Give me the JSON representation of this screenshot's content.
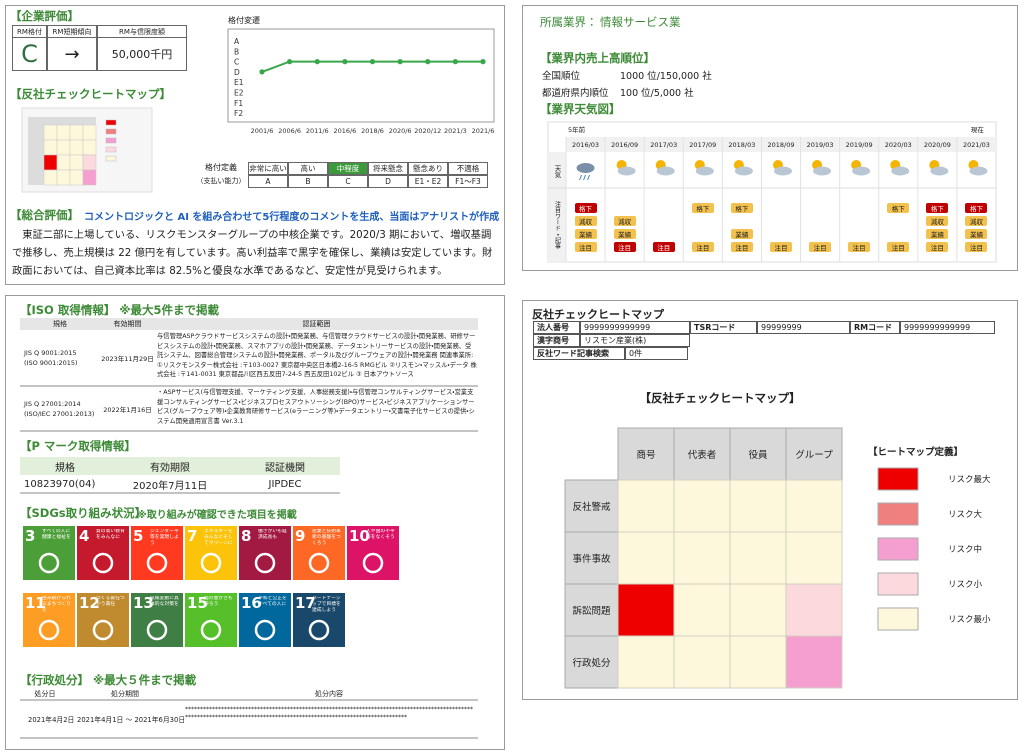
{
  "company_rating": {
    "title": "【企業評価】",
    "headers": [
      "RM格付",
      "RM短期傾向",
      "RM与信限度額"
    ],
    "values": [
      "C",
      "→",
      "50,000千円"
    ]
  },
  "chart_data": {
    "type": "line",
    "title": "格付変遷",
    "categories": [
      "2001/6",
      "2006/6",
      "2011/6",
      "2016/6",
      "2018/6",
      "2020/6",
      "2020/12",
      "2021/3",
      "2021/6"
    ],
    "y_categories": [
      "A",
      "B",
      "C",
      "D",
      "E1",
      "E2",
      "F1",
      "F2"
    ],
    "values": [
      "D",
      "C",
      "C",
      "C",
      "C",
      "C",
      "C",
      "C",
      "C"
    ],
    "color": "#3aa64a"
  },
  "antisocial_title": "【反社チェックヒートマップ】",
  "rating_definition": {
    "label": [
      "格付定義",
      "（支払い能力）"
    ],
    "levels": [
      "非常に高い",
      "高い",
      "中程度",
      "将来懸念",
      "懸念あり",
      "不適格"
    ],
    "grades": [
      "A",
      "B",
      "C",
      "D",
      "E1・E2",
      "F1〜F3"
    ],
    "highlight_index": 2,
    "highlight_color": "#3c9a3c"
  },
  "overall": {
    "title": "【総合評価】",
    "note": "コメントロジックと AI を組み合わせて5行程度のコメントを生成、当面はアナリストが作成",
    "text": "東証二部に上場している、リスクモンスターグループの中核企業です。2020/3 期において、増収基調で推移し、売上規模は 22 億円を有しています。高い利益率で黒字を確保し、業績は安定しています。財政面においては、自己資本比率は 82.5%と優良な水準であるなど、安定性が見受けられます。"
  },
  "industry": {
    "label": "所属業界：",
    "value": "情報サービス業",
    "rank_title": "【業界内売上高順位】",
    "ranks": [
      {
        "label": "全国順位",
        "value": "1000 位/150,000 社"
      },
      {
        "label": "都道府県内順位",
        "value": "100 位/5,000 社"
      }
    ],
    "weather_title": "【業界天気図】",
    "weather": {
      "start_label": "5年前",
      "end_label": "現在",
      "row_labels": [
        "天気",
        "注目ワード・記事"
      ],
      "dates": [
        "2016/03",
        "2016/09",
        "2017/03",
        "2017/09",
        "2018/03",
        "2018/09",
        "2019/03",
        "2019/09",
        "2020/03",
        "2020/09",
        "2021/03"
      ],
      "tags": [
        [
          {
            "text": "格下",
            "color": "#c00000"
          },
          null,
          null,
          {
            "text": "格下",
            "color": "#f2c14e"
          },
          {
            "text": "格下",
            "color": "#f2c14e"
          },
          null,
          null,
          null,
          {
            "text": "格下",
            "color": "#f2c14e"
          },
          {
            "text": "格下",
            "color": "#c00000"
          },
          {
            "text": "格下",
            "color": "#c00000"
          }
        ],
        [
          {
            "text": "減収",
            "color": "#f2c14e"
          },
          {
            "text": "減収",
            "color": "#f2c14e"
          },
          null,
          null,
          null,
          null,
          null,
          null,
          null,
          {
            "text": "減収",
            "color": "#f2c14e"
          },
          {
            "text": "減収",
            "color": "#f2c14e"
          }
        ],
        [
          {
            "text": "業績",
            "color": "#f2c14e"
          },
          {
            "text": "業績",
            "color": "#f2c14e"
          },
          null,
          null,
          {
            "text": "業績",
            "color": "#f2c14e"
          },
          null,
          null,
          null,
          null,
          {
            "text": "業績",
            "color": "#f2c14e"
          },
          {
            "text": "業績",
            "color": "#f2c14e"
          }
        ],
        [
          {
            "text": "注目",
            "color": "#f2c14e"
          },
          {
            "text": "注目",
            "color": "#c00000"
          },
          {
            "text": "注目",
            "color": "#c00000"
          },
          {
            "text": "注目",
            "color": "#f2c14e"
          },
          {
            "text": "注目",
            "color": "#f2c14e"
          },
          {
            "text": "注目",
            "color": "#f2c14e"
          },
          {
            "text": "注目",
            "color": "#f2c14e"
          },
          {
            "text": "注目",
            "color": "#f2c14e"
          },
          {
            "text": "注目",
            "color": "#f2c14e"
          },
          {
            "text": "注目",
            "color": "#f2c14e"
          },
          {
            "text": "注目",
            "color": "#f2c14e"
          }
        ]
      ]
    }
  },
  "iso": {
    "title": "【ISO 取得情報】 ※最大5件まで掲載",
    "headers": [
      "規格",
      "有効期間",
      "認証範囲"
    ],
    "rows": [
      {
        "standard": [
          "JIS Q 9001:2015",
          "(ISO 9001:2015)"
        ],
        "period": "2023年11月29日",
        "scope": "与信管理ASPクラウドサービスシステムの設計・開発業務、与信管理クラウドサービスの設計・開発業務、研修サービスシステムの設計・開発業務、スマホアプリの設計・開発業務、データエントリーサービスの設計・開発業務、受託システム、図書総合管理システムの設計・開発業務、ポータル及びグループウェアの設計・開発業務 関連事業所: ①リスクモンスター株式会社 :〒103-0027 東京都中央区日本橋2-16-5 RMGビル ②リスモン・マッスル・データ 株式会社 :〒141-0031 東京都品川区西五反田7-24-5 西五反田102ビル ③ 日本アウトソース"
      },
      {
        "standard": [
          "JIS Q 27001:2014",
          "(ISO/IEC 27001:2013)"
        ],
        "period": "2022年1月16日",
        "scope": "・ASPサービス(与信管理支援、マーケティング支援、人事総務支援)・与信管理コンサルティングサービス・営業支援コンサルティングサービス・ビジネスプロセスアウトソーシング(BPO)サービス・ビジネスアプリケーションサービス(グループウェア等)・企業教育研修サービス(eラーニング等)・データエントリー・文書電子化サービスの提供・システム開発適用宣言書 Ver.3.1"
      }
    ]
  },
  "pmark": {
    "title": "【P マーク取得情報】",
    "headers": [
      "規格",
      "有効期限",
      "認証機関"
    ],
    "row": [
      "10823970(04)",
      "2020年7月11日",
      "JIPDEC"
    ]
  },
  "sdgs": {
    "title": "【SDGs取り組み状況】",
    "note": "※取り組みが確認できた項目を掲載",
    "goals": [
      {
        "number": 3,
        "label": "すべての人に健康と福祉を",
        "color": "#4c9f38"
      },
      {
        "number": 4,
        "label": "質の高い教育をみんなに",
        "color": "#c5192d"
      },
      {
        "number": 5,
        "label": "ジェンダー平等を実現しよう",
        "color": "#ff3a21"
      },
      {
        "number": 7,
        "label": "エネルギーをみんなにそしてクリーンに",
        "color": "#fcc30b"
      },
      {
        "number": 8,
        "label": "働きがいも経済成長も",
        "color": "#a21942"
      },
      {
        "number": 9,
        "label": "産業と技術革新の基盤をつくろう",
        "color": "#fd6925"
      },
      {
        "number": 10,
        "label": "人や国の不平等をなくそう",
        "color": "#dd1367"
      },
      {
        "number": 11,
        "label": "住み続けられるまちづくりを",
        "color": "#fd9d24"
      },
      {
        "number": 12,
        "label": "つくる責任つかう責任",
        "color": "#bf8b2e"
      },
      {
        "number": 13,
        "label": "気候変動に具体的な対策を",
        "color": "#3f7e44"
      },
      {
        "number": 15,
        "label": "陸の豊かさも守ろう",
        "color": "#56c02b"
      },
      {
        "number": 16,
        "label": "平和と公正をすべての人に",
        "color": "#00689d"
      },
      {
        "number": 17,
        "label": "パートナーシップで目標を達成しよう",
        "color": "#19486a"
      }
    ]
  },
  "administrative": {
    "title": "【行政処分】 ※最大５件まで掲載",
    "headers": [
      "処分日",
      "処分期間",
      "処分内容"
    ],
    "row": [
      "2021年4月2日",
      "2021年4月1日 〜 2021年6月30日",
      "**************************************************************************************************************************************************************************"
    ]
  },
  "heatmap": {
    "title": "反社チェックヒートマップ",
    "info": [
      [
        "法人番号",
        "9999999999999",
        "TSRコード",
        "99999999",
        "RMコード",
        "9999999999999"
      ],
      [
        "漢字商号",
        "リスモン産業(株)"
      ],
      [
        "反社ワード記事検索",
        "0件"
      ]
    ],
    "chart_title": "【反社チェックヒートマップ】",
    "columns": [
      "商号",
      "代表者",
      "役員",
      "グループ"
    ],
    "rows": [
      "反社警戒",
      "事件事故",
      "訴訟問題",
      "行政処分"
    ],
    "cells": [
      [
        4,
        4,
        4,
        4
      ],
      [
        4,
        4,
        4,
        4
      ],
      [
        0,
        4,
        4,
        3
      ],
      [
        4,
        4,
        4,
        2
      ]
    ],
    "legend_title": "【ヒートマップ定義】",
    "legend": [
      {
        "label": "リスク最大",
        "color": "#ee0000"
      },
      {
        "label": "リスク大",
        "color": "#f08080"
      },
      {
        "label": "リスク中",
        "color": "#f59fd0"
      },
      {
        "label": "リスク小",
        "color": "#fcd9dc"
      },
      {
        "label": "リスク最小",
        "color": "#fdf8dc"
      }
    ]
  }
}
